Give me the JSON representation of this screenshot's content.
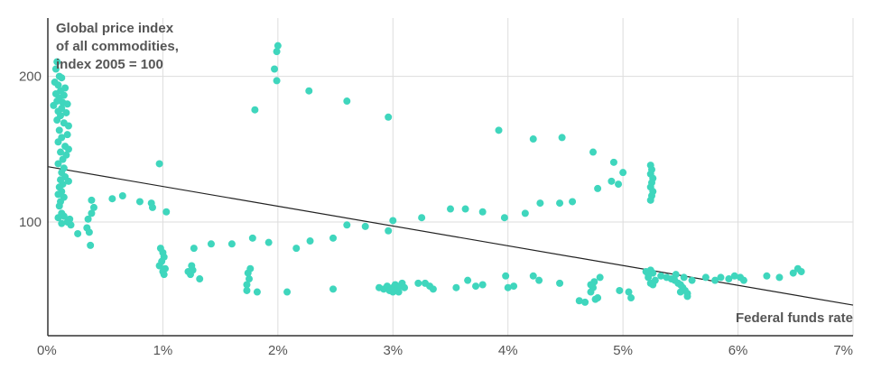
{
  "chart_data": {
    "type": "scatter",
    "ylabel_lines": [
      "Global price index",
      "of all commodities,",
      "index 2005 = 100"
    ],
    "xlabel": "Federal funds rate",
    "x_ticks": [
      {
        "value": 0,
        "label": "0%"
      },
      {
        "value": 1,
        "label": "1%"
      },
      {
        "value": 2,
        "label": "2%"
      },
      {
        "value": 3,
        "label": "3%"
      },
      {
        "value": 4,
        "label": "4%"
      },
      {
        "value": 5,
        "label": "5%"
      },
      {
        "value": 6,
        "label": "6%"
      },
      {
        "value": 7,
        "label": "7%"
      }
    ],
    "y_ticks": [
      {
        "value": 100,
        "label": "100"
      },
      {
        "value": 200,
        "label": "200"
      }
    ],
    "xlim": [
      0,
      7
    ],
    "ylim": [
      22,
      240
    ],
    "grid": true,
    "trendline": [
      [
        0,
        138
      ],
      [
        7,
        43
      ]
    ],
    "colors": {
      "points": "#3fd6bd",
      "trend": "#222222",
      "grid": "#dddddd",
      "axis": "#333333"
    },
    "points": [
      [
        0.08,
        210
      ],
      [
        0.07,
        205
      ],
      [
        0.1,
        200
      ],
      [
        0.12,
        199
      ],
      [
        0.06,
        196
      ],
      [
        0.09,
        194
      ],
      [
        0.15,
        192
      ],
      [
        0.11,
        190
      ],
      [
        0.07,
        188
      ],
      [
        0.14,
        187
      ],
      [
        0.1,
        185
      ],
      [
        0.08,
        183
      ],
      [
        0.13,
        182
      ],
      [
        0.17,
        181
      ],
      [
        0.05,
        180
      ],
      [
        0.12,
        178
      ],
      [
        0.09,
        176
      ],
      [
        0.16,
        175
      ],
      [
        0.11,
        173
      ],
      [
        0.08,
        170
      ],
      [
        0.14,
        168
      ],
      [
        0.18,
        166
      ],
      [
        0.1,
        163
      ],
      [
        0.17,
        160
      ],
      [
        0.12,
        158
      ],
      [
        0.09,
        155
      ],
      [
        0.15,
        152
      ],
      [
        0.18,
        150
      ],
      [
        0.11,
        148
      ],
      [
        0.16,
        146
      ],
      [
        0.13,
        143
      ],
      [
        0.09,
        140
      ],
      [
        0.14,
        137
      ],
      [
        0.12,
        134
      ],
      [
        0.15,
        131
      ],
      [
        0.11,
        129
      ],
      [
        0.18,
        128
      ],
      [
        0.13,
        126
      ],
      [
        0.1,
        124
      ],
      [
        0.12,
        121
      ],
      [
        0.09,
        119
      ],
      [
        0.14,
        117
      ],
      [
        0.11,
        114
      ],
      [
        0.1,
        111
      ],
      [
        0.12,
        106
      ],
      [
        0.14,
        104
      ],
      [
        0.19,
        102
      ],
      [
        0.17,
        100
      ],
      [
        0.12,
        99
      ],
      [
        0.2,
        98
      ],
      [
        0.09,
        103
      ],
      [
        0.26,
        92
      ],
      [
        0.34,
        96
      ],
      [
        0.37,
        84
      ],
      [
        0.35,
        102
      ],
      [
        0.38,
        106
      ],
      [
        0.4,
        110
      ],
      [
        0.38,
        115
      ],
      [
        0.36,
        93
      ],
      [
        0.56,
        116
      ],
      [
        0.65,
        118
      ],
      [
        0.8,
        114
      ],
      [
        0.9,
        113
      ],
      [
        0.91,
        110
      ],
      [
        0.97,
        140
      ],
      [
        1.03,
        107
      ],
      [
        0.98,
        82
      ],
      [
        1.0,
        79
      ],
      [
        1.01,
        76
      ],
      [
        0.99,
        73
      ],
      [
        0.97,
        70
      ],
      [
        1.02,
        68
      ],
      [
        1.0,
        66
      ],
      [
        1.01,
        64
      ],
      [
        1.24,
        64
      ],
      [
        1.26,
        67
      ],
      [
        1.25,
        70
      ],
      [
        1.22,
        66
      ],
      [
        1.32,
        61
      ],
      [
        1.27,
        82
      ],
      [
        1.42,
        85
      ],
      [
        1.6,
        85
      ],
      [
        1.78,
        89
      ],
      [
        1.92,
        86
      ],
      [
        1.73,
        53
      ],
      [
        1.73,
        57
      ],
      [
        1.75,
        61
      ],
      [
        1.74,
        65
      ],
      [
        1.76,
        68
      ],
      [
        1.82,
        52
      ],
      [
        2.08,
        52
      ],
      [
        2.16,
        82
      ],
      [
        2.28,
        87
      ],
      [
        2.48,
        89
      ],
      [
        2.48,
        54
      ],
      [
        1.8,
        177
      ],
      [
        1.97,
        205
      ],
      [
        1.99,
        197
      ],
      [
        1.99,
        217
      ],
      [
        2.0,
        221
      ],
      [
        2.27,
        190
      ],
      [
        2.6,
        183
      ],
      [
        2.96,
        172
      ],
      [
        2.6,
        98
      ],
      [
        2.76,
        97
      ],
      [
        2.96,
        94
      ],
      [
        3.0,
        101
      ],
      [
        3.25,
        103
      ],
      [
        3.5,
        109
      ],
      [
        3.63,
        109
      ],
      [
        3.78,
        107
      ],
      [
        3.97,
        103
      ],
      [
        4.15,
        106
      ],
      [
        4.28,
        113
      ],
      [
        4.45,
        113
      ],
      [
        4.56,
        114
      ],
      [
        4.78,
        123
      ],
      [
        4.9,
        128
      ],
      [
        4.96,
        126
      ],
      [
        5.0,
        134
      ],
      [
        2.88,
        55
      ],
      [
        2.92,
        54
      ],
      [
        2.95,
        56
      ],
      [
        2.97,
        53
      ],
      [
        3.0,
        55
      ],
      [
        3.02,
        57
      ],
      [
        3.04,
        54
      ],
      [
        3.06,
        56
      ],
      [
        3.08,
        58
      ],
      [
        3.1,
        55
      ],
      [
        3.0,
        52
      ],
      [
        3.05,
        52
      ],
      [
        3.22,
        58
      ],
      [
        3.28,
        58
      ],
      [
        3.32,
        56
      ],
      [
        3.35,
        54
      ],
      [
        3.55,
        55
      ],
      [
        3.65,
        60
      ],
      [
        3.72,
        56
      ],
      [
        3.78,
        57
      ],
      [
        3.98,
        63
      ],
      [
        4.0,
        55
      ],
      [
        4.05,
        56
      ],
      [
        4.22,
        63
      ],
      [
        4.27,
        60
      ],
      [
        4.45,
        58
      ],
      [
        3.92,
        163
      ],
      [
        4.22,
        157
      ],
      [
        4.47,
        158
      ],
      [
        4.74,
        148
      ],
      [
        4.92,
        141
      ],
      [
        4.62,
        46
      ],
      [
        4.67,
        45
      ],
      [
        4.72,
        52
      ],
      [
        4.75,
        59
      ],
      [
        4.76,
        47
      ],
      [
        4.78,
        48
      ],
      [
        4.8,
        62
      ],
      [
        4.74,
        55
      ],
      [
        4.72,
        57
      ],
      [
        4.97,
        53
      ],
      [
        5.05,
        52
      ],
      [
        5.07,
        48
      ],
      [
        5.2,
        66
      ],
      [
        5.22,
        64
      ],
      [
        5.24,
        67
      ],
      [
        5.22,
        62
      ],
      [
        5.26,
        65
      ],
      [
        5.28,
        60
      ],
      [
        5.24,
        58
      ],
      [
        5.26,
        57
      ],
      [
        5.24,
        139
      ],
      [
        5.25,
        136
      ],
      [
        5.24,
        133
      ],
      [
        5.26,
        130
      ],
      [
        5.25,
        127
      ],
      [
        5.24,
        124
      ],
      [
        5.26,
        121
      ],
      [
        5.25,
        118
      ],
      [
        5.24,
        115
      ],
      [
        5.33,
        63
      ],
      [
        5.38,
        62
      ],
      [
        5.42,
        61
      ],
      [
        5.45,
        60
      ],
      [
        5.48,
        58
      ],
      [
        5.5,
        57
      ],
      [
        5.52,
        55
      ],
      [
        5.54,
        53
      ],
      [
        5.56,
        51
      ],
      [
        5.53,
        62
      ],
      [
        5.6,
        60
      ],
      [
        5.46,
        64
      ],
      [
        5.5,
        52
      ],
      [
        5.56,
        49
      ],
      [
        5.72,
        62
      ],
      [
        5.8,
        60
      ],
      [
        5.85,
        62
      ],
      [
        5.92,
        61
      ],
      [
        5.97,
        63
      ],
      [
        6.02,
        62
      ],
      [
        6.05,
        60
      ],
      [
        6.25,
        63
      ],
      [
        6.36,
        62
      ],
      [
        6.48,
        65
      ],
      [
        6.52,
        68
      ],
      [
        6.55,
        66
      ]
    ]
  }
}
